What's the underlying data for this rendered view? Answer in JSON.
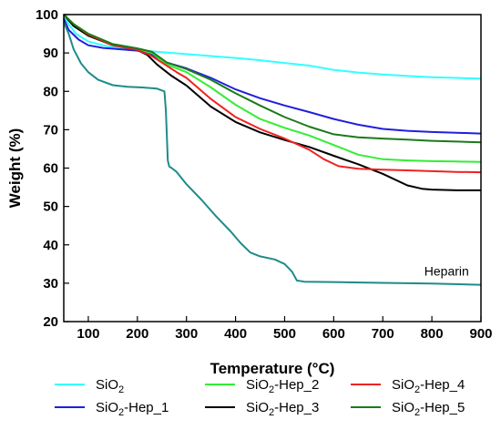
{
  "chart_data": {
    "type": "line",
    "xlabel": "Temperature (°C)",
    "ylabel": "Weight (%)",
    "xlim": [
      50,
      900
    ],
    "ylim": [
      20,
      100
    ],
    "xticks": [
      100,
      200,
      300,
      400,
      500,
      600,
      700,
      800,
      900
    ],
    "yticks": [
      20,
      30,
      40,
      50,
      60,
      70,
      80,
      90,
      100
    ],
    "legend_position": "bottom, below x-axis",
    "annotations": [
      {
        "text": "Heparin",
        "x": 830,
        "y": 32
      }
    ],
    "series": [
      {
        "key": "sio2",
        "name_base": "SiO",
        "name_sub": "2",
        "name_suffix": "",
        "color": "#33ffff",
        "x": [
          50,
          60,
          75,
          100,
          130,
          160,
          200,
          250,
          300,
          350,
          400,
          450,
          500,
          550,
          600,
          650,
          700,
          750,
          800,
          850,
          900
        ],
        "y": [
          100,
          97.5,
          95,
          93,
          92,
          91.3,
          90.7,
          90.2,
          89.7,
          89.2,
          88.7,
          88.1,
          87.4,
          86.7,
          85.6,
          84.9,
          84.4,
          84,
          83.7,
          83.5,
          83.3
        ]
      },
      {
        "key": "hep1",
        "name_base": "SiO",
        "name_sub": "2",
        "name_suffix": "-Hep_1",
        "color": "#1f1fdd",
        "x": [
          50,
          60,
          80,
          100,
          130,
          160,
          200,
          230,
          260,
          300,
          350,
          400,
          450,
          500,
          550,
          600,
          650,
          700,
          750,
          800,
          850,
          900
        ],
        "y": [
          99,
          96,
          93.5,
          92,
          91.3,
          91,
          90.6,
          89.5,
          87.5,
          86,
          83.5,
          80.5,
          78.2,
          76.3,
          74.6,
          72.8,
          71.3,
          70.2,
          69.7,
          69.4,
          69.2,
          69
        ]
      },
      {
        "key": "hep2",
        "name_base": "SiO",
        "name_sub": "2",
        "name_suffix": "-Hep_2",
        "color": "#33ee33",
        "x": [
          50,
          70,
          100,
          150,
          200,
          230,
          260,
          300,
          350,
          400,
          450,
          500,
          550,
          600,
          650,
          700,
          750,
          800,
          850,
          900
        ],
        "y": [
          100,
          97.5,
          95,
          92,
          91,
          90,
          87,
          85,
          81,
          76.5,
          72.8,
          70.5,
          68.5,
          66,
          63.5,
          62.3,
          62,
          61.8,
          61.7,
          61.6
        ]
      },
      {
        "key": "hep3",
        "name_base": "SiO",
        "name_sub": "2",
        "name_suffix": "-Hep_3",
        "color": "#000000",
        "x": [
          50,
          70,
          100,
          150,
          200,
          220,
          240,
          270,
          300,
          350,
          400,
          450,
          500,
          550,
          600,
          650,
          700,
          750,
          780,
          800,
          850,
          900
        ],
        "y": [
          100,
          97,
          94.5,
          92,
          90.8,
          89.5,
          87,
          84,
          81.5,
          76,
          72,
          69.3,
          67.3,
          65.5,
          63.2,
          61,
          58.5,
          55.5,
          54.6,
          54.4,
          54.2,
          54.2
        ]
      },
      {
        "key": "hep4",
        "name_base": "SiO",
        "name_sub": "2",
        "name_suffix": "-Hep_4",
        "color": "#ee2222",
        "x": [
          50,
          70,
          100,
          150,
          200,
          225,
          250,
          280,
          300,
          350,
          400,
          450,
          500,
          550,
          580,
          610,
          650,
          700,
          750,
          800,
          850,
          900
        ],
        "y": [
          100,
          97.5,
          94.8,
          92,
          90.8,
          89.5,
          87.5,
          85,
          83.5,
          78,
          73.3,
          70.2,
          67.7,
          64.8,
          62.3,
          60.5,
          59.8,
          59.6,
          59.4,
          59.2,
          59,
          58.9
        ]
      },
      {
        "key": "hep5",
        "name_base": "SiO",
        "name_sub": "2",
        "name_suffix": "-Hep_5",
        "color": "#1a7a1a",
        "x": [
          50,
          70,
          100,
          150,
          200,
          230,
          260,
          300,
          350,
          400,
          450,
          500,
          550,
          600,
          650,
          700,
          750,
          800,
          850,
          900
        ],
        "y": [
          100,
          97.5,
          95,
          92.3,
          91.2,
          90.3,
          87.5,
          85.8,
          83,
          79.5,
          76.3,
          73.3,
          70.8,
          68.8,
          68,
          67.7,
          67.4,
          67.1,
          66.9,
          66.7
        ]
      },
      {
        "key": "heparin",
        "name": "Heparin",
        "color": "#1f8b8b",
        "x": [
          50,
          60,
          70,
          85,
          100,
          120,
          150,
          180,
          210,
          240,
          255,
          258,
          262,
          265,
          270,
          280,
          300,
          330,
          360,
          390,
          410,
          430,
          450,
          480,
          500,
          515,
          525,
          540,
          600,
          700,
          800,
          900
        ],
        "y": [
          98,
          95,
          91,
          87.3,
          85,
          83,
          81.6,
          81.2,
          81,
          80.7,
          80,
          75,
          62,
          60.4,
          60,
          59,
          55.8,
          51.8,
          47.5,
          43.5,
          40.5,
          38,
          37,
          36.2,
          35,
          33,
          30.7,
          30.4,
          30.3,
          30.1,
          29.9,
          29.6
        ]
      }
    ],
    "legend_entries": [
      {
        "key": "sio2",
        "col": 0,
        "row": 0
      },
      {
        "key": "hep2",
        "col": 1,
        "row": 0
      },
      {
        "key": "hep4",
        "col": 2,
        "row": 0
      },
      {
        "key": "hep1",
        "col": 0,
        "row": 1
      },
      {
        "key": "hep3",
        "col": 1,
        "row": 1
      },
      {
        "key": "hep5",
        "col": 2,
        "row": 1
      }
    ]
  }
}
